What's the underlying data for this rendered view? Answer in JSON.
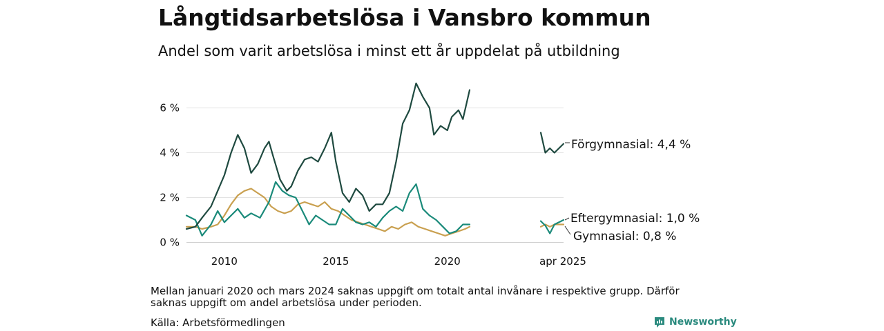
{
  "title": "Långtidsarbetslösa i Vansbro kommun",
  "subtitle": "Andel som varit arbetslösa i minst ett år uppdelat på utbildning",
  "note": "Mellan januari 2020 och mars 2024 saknas uppgift om totalt antal invånare i respektive grupp. Därför saknas uppgift om andel arbetslösa under perioden.",
  "source": "Källa: Arbetsförmedlingen",
  "brand": {
    "name": "Newsworthy",
    "icon": "newsworthy-logo-icon"
  },
  "chart_data": {
    "type": "line",
    "title": "Långtidsarbetslösa i Vansbro kommun",
    "subtitle": "Andel som varit arbetslösa i minst ett år uppdelat på utbildning",
    "y_unit": "%",
    "ylim": [
      0,
      7.3
    ],
    "y_ticks": [
      0,
      2,
      4,
      6
    ],
    "y_tick_labels": [
      "0 %",
      "2 %",
      "4 %",
      "6 %"
    ],
    "x_ticks": [
      2010,
      2015,
      2020
    ],
    "x_tick_labels": [
      "2010",
      "2015",
      "2020"
    ],
    "inset_tick_label": "apr 2025",
    "grid": true,
    "legend": "end-labels",
    "series": [
      {
        "name": "Förgymnasial",
        "color": "#1f4a40",
        "end_label": "Förgymnasial: 4,4 %",
        "main": [
          [
            2008.3,
            0.6
          ],
          [
            2008.7,
            0.7
          ],
          [
            2009.0,
            1.1
          ],
          [
            2009.4,
            1.6
          ],
          [
            2009.7,
            2.3
          ],
          [
            2010.0,
            3.0
          ],
          [
            2010.3,
            4.0
          ],
          [
            2010.6,
            4.8
          ],
          [
            2010.9,
            4.2
          ],
          [
            2011.2,
            3.1
          ],
          [
            2011.5,
            3.5
          ],
          [
            2011.8,
            4.2
          ],
          [
            2012.0,
            4.5
          ],
          [
            2012.2,
            3.8
          ],
          [
            2012.5,
            2.8
          ],
          [
            2012.8,
            2.3
          ],
          [
            2013.0,
            2.5
          ],
          [
            2013.3,
            3.2
          ],
          [
            2013.6,
            3.7
          ],
          [
            2013.9,
            3.8
          ],
          [
            2014.2,
            3.6
          ],
          [
            2014.5,
            4.2
          ],
          [
            2014.8,
            4.9
          ],
          [
            2015.0,
            3.6
          ],
          [
            2015.3,
            2.2
          ],
          [
            2015.6,
            1.8
          ],
          [
            2015.9,
            2.4
          ],
          [
            2016.2,
            2.1
          ],
          [
            2016.5,
            1.4
          ],
          [
            2016.8,
            1.7
          ],
          [
            2017.1,
            1.7
          ],
          [
            2017.4,
            2.2
          ],
          [
            2017.7,
            3.6
          ],
          [
            2018.0,
            5.3
          ],
          [
            2018.3,
            5.9
          ],
          [
            2018.6,
            7.1
          ],
          [
            2018.9,
            6.5
          ],
          [
            2019.2,
            6.0
          ],
          [
            2019.4,
            4.8
          ],
          [
            2019.7,
            5.2
          ],
          [
            2020.0,
            5.0
          ],
          [
            2020.2,
            5.6
          ],
          [
            2020.5,
            5.9
          ],
          [
            2020.7,
            5.5
          ],
          [
            2021.0,
            6.8
          ]
        ],
        "inset": [
          [
            2024.25,
            4.9
          ],
          [
            2024.45,
            4.0
          ],
          [
            2024.65,
            4.2
          ],
          [
            2024.85,
            4.0
          ],
          [
            2025.25,
            4.4
          ]
        ]
      },
      {
        "name": "Eftergymnasial",
        "color": "#1a8a7a",
        "end_label": "Eftergymnasial: 1,0 %",
        "main": [
          [
            2008.3,
            1.2
          ],
          [
            2008.7,
            1.0
          ],
          [
            2009.0,
            0.3
          ],
          [
            2009.4,
            0.8
          ],
          [
            2009.7,
            1.4
          ],
          [
            2010.0,
            0.9
          ],
          [
            2010.3,
            1.2
          ],
          [
            2010.6,
            1.5
          ],
          [
            2010.9,
            1.1
          ],
          [
            2011.2,
            1.3
          ],
          [
            2011.6,
            1.1
          ],
          [
            2012.0,
            1.8
          ],
          [
            2012.3,
            2.7
          ],
          [
            2012.6,
            2.3
          ],
          [
            2012.9,
            2.1
          ],
          [
            2013.2,
            2.0
          ],
          [
            2013.5,
            1.4
          ],
          [
            2013.8,
            0.8
          ],
          [
            2014.1,
            1.2
          ],
          [
            2014.4,
            1.0
          ],
          [
            2014.7,
            0.8
          ],
          [
            2015.0,
            0.8
          ],
          [
            2015.3,
            1.5
          ],
          [
            2015.6,
            1.2
          ],
          [
            2015.9,
            0.9
          ],
          [
            2016.2,
            0.8
          ],
          [
            2016.5,
            0.9
          ],
          [
            2016.8,
            0.7
          ],
          [
            2017.1,
            1.1
          ],
          [
            2017.4,
            1.4
          ],
          [
            2017.7,
            1.6
          ],
          [
            2018.0,
            1.4
          ],
          [
            2018.3,
            2.2
          ],
          [
            2018.6,
            2.6
          ],
          [
            2018.9,
            1.5
          ],
          [
            2019.2,
            1.2
          ],
          [
            2019.5,
            1.0
          ],
          [
            2019.8,
            0.7
          ],
          [
            2020.1,
            0.4
          ],
          [
            2020.4,
            0.5
          ],
          [
            2020.7,
            0.8
          ],
          [
            2021.0,
            0.8
          ]
        ],
        "inset": [
          [
            2024.25,
            0.95
          ],
          [
            2024.45,
            0.75
          ],
          [
            2024.65,
            0.4
          ],
          [
            2024.85,
            0.8
          ],
          [
            2025.25,
            1.0
          ]
        ]
      },
      {
        "name": "Gymnasial",
        "color": "#c9a050",
        "end_label": "Gymnasial: 0,8 %",
        "main": [
          [
            2008.3,
            0.7
          ],
          [
            2008.7,
            0.7
          ],
          [
            2009.0,
            0.6
          ],
          [
            2009.4,
            0.7
          ],
          [
            2009.7,
            0.8
          ],
          [
            2010.0,
            1.2
          ],
          [
            2010.3,
            1.7
          ],
          [
            2010.6,
            2.1
          ],
          [
            2010.9,
            2.3
          ],
          [
            2011.2,
            2.4
          ],
          [
            2011.5,
            2.2
          ],
          [
            2011.8,
            2.0
          ],
          [
            2012.1,
            1.6
          ],
          [
            2012.4,
            1.4
          ],
          [
            2012.7,
            1.3
          ],
          [
            2013.0,
            1.4
          ],
          [
            2013.3,
            1.7
          ],
          [
            2013.6,
            1.8
          ],
          [
            2013.9,
            1.7
          ],
          [
            2014.2,
            1.6
          ],
          [
            2014.5,
            1.8
          ],
          [
            2014.8,
            1.5
          ],
          [
            2015.1,
            1.4
          ],
          [
            2015.4,
            1.2
          ],
          [
            2015.7,
            1.0
          ],
          [
            2016.0,
            0.9
          ],
          [
            2016.3,
            0.8
          ],
          [
            2016.6,
            0.7
          ],
          [
            2016.9,
            0.6
          ],
          [
            2017.2,
            0.5
          ],
          [
            2017.5,
            0.7
          ],
          [
            2017.8,
            0.6
          ],
          [
            2018.1,
            0.8
          ],
          [
            2018.4,
            0.9
          ],
          [
            2018.7,
            0.7
          ],
          [
            2019.0,
            0.6
          ],
          [
            2019.3,
            0.5
          ],
          [
            2019.6,
            0.4
          ],
          [
            2019.9,
            0.3
          ],
          [
            2020.2,
            0.4
          ],
          [
            2020.5,
            0.5
          ],
          [
            2020.8,
            0.6
          ],
          [
            2021.0,
            0.7
          ]
        ],
        "inset": [
          [
            2024.25,
            0.7
          ],
          [
            2024.45,
            0.8
          ],
          [
            2024.65,
            0.7
          ],
          [
            2024.85,
            0.8
          ],
          [
            2025.25,
            0.8
          ]
        ]
      }
    ]
  }
}
